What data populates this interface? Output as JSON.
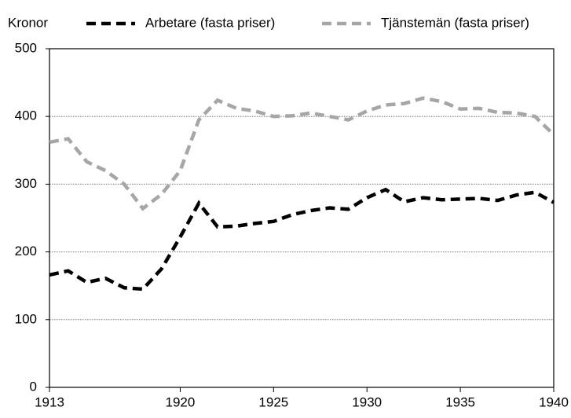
{
  "chart_data": {
    "type": "line",
    "ylabel": "Kronor",
    "x": [
      1913,
      1914,
      1915,
      1916,
      1917,
      1918,
      1919,
      1920,
      1921,
      1922,
      1923,
      1924,
      1925,
      1926,
      1927,
      1928,
      1929,
      1930,
      1931,
      1932,
      1933,
      1934,
      1935,
      1936,
      1937,
      1938,
      1939,
      1940
    ],
    "series": [
      {
        "name": "Arbetare (fasta priser)",
        "color": "#000000",
        "values": [
          166,
          172,
          155,
          161,
          147,
          145,
          175,
          222,
          272,
          237,
          238,
          242,
          245,
          255,
          261,
          265,
          263,
          280,
          292,
          274,
          280,
          277,
          278,
          279,
          276,
          284,
          288,
          273
        ]
      },
      {
        "name": "Tjänstemän (fasta priser)",
        "color": "#a6a6a6",
        "values": [
          362,
          367,
          333,
          320,
          300,
          264,
          285,
          320,
          395,
          424,
          412,
          408,
          400,
          401,
          405,
          400,
          395,
          408,
          417,
          419,
          427,
          422,
          411,
          412,
          406,
          405,
          400,
          373
        ]
      }
    ],
    "xlim": [
      1913,
      1940
    ],
    "xticks": [
      1913,
      1920,
      1925,
      1930,
      1935,
      1940
    ],
    "ylim": [
      0,
      500
    ],
    "yticks": [
      0,
      100,
      200,
      300,
      400,
      500
    ],
    "grid": true,
    "legend": "top"
  }
}
